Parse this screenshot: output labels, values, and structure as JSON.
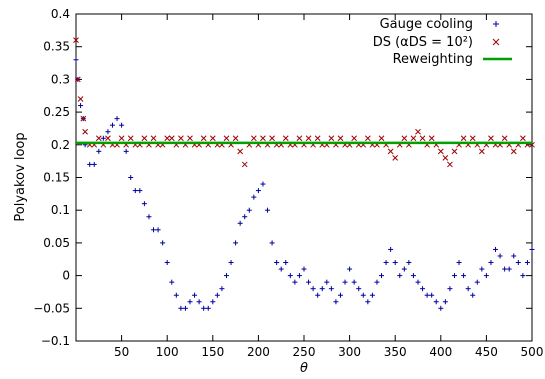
{
  "chart_data": {
    "type": "scatter",
    "xlabel": "θ",
    "ylabel": "Polyakov loop",
    "xlim": [
      0,
      500
    ],
    "ylim": [
      -0.1,
      0.4
    ],
    "x_ticks": [
      50,
      100,
      150,
      200,
      250,
      300,
      350,
      400,
      450,
      500
    ],
    "y_ticks": [
      -0.1,
      -0.05,
      0,
      0.05,
      0.1,
      0.15,
      0.2,
      0.25,
      0.3,
      0.35,
      0.4
    ],
    "legend_position": "top-right",
    "series": [
      {
        "name": "Gauge cooling",
        "marker": "plus",
        "color": "#0000a0",
        "x": [
          0,
          2,
          5,
          8,
          10,
          15,
          20,
          25,
          30,
          35,
          40,
          45,
          50,
          55,
          60,
          65,
          70,
          75,
          80,
          85,
          90,
          95,
          100,
          105,
          110,
          115,
          120,
          125,
          130,
          135,
          140,
          145,
          150,
          155,
          160,
          165,
          170,
          175,
          180,
          185,
          190,
          195,
          200,
          205,
          210,
          215,
          220,
          225,
          230,
          235,
          240,
          245,
          250,
          255,
          260,
          265,
          270,
          275,
          280,
          285,
          290,
          295,
          300,
          305,
          310,
          315,
          320,
          325,
          330,
          335,
          340,
          345,
          350,
          355,
          360,
          365,
          370,
          375,
          380,
          385,
          390,
          395,
          400,
          405,
          410,
          415,
          420,
          425,
          430,
          435,
          440,
          445,
          450,
          455,
          460,
          465,
          470,
          475,
          480,
          485,
          490,
          495,
          500
        ],
        "y": [
          0.33,
          0.3,
          0.26,
          0.24,
          0.2,
          0.17,
          0.17,
          0.19,
          0.21,
          0.22,
          0.23,
          0.24,
          0.23,
          0.19,
          0.15,
          0.13,
          0.13,
          0.11,
          0.09,
          0.07,
          0.07,
          0.05,
          0.02,
          -0.01,
          -0.03,
          -0.05,
          -0.05,
          -0.04,
          -0.03,
          -0.04,
          -0.05,
          -0.05,
          -0.04,
          -0.03,
          -0.02,
          0.0,
          0.02,
          0.05,
          0.08,
          0.09,
          0.1,
          0.12,
          0.13,
          0.14,
          0.1,
          0.05,
          0.02,
          0.01,
          0.02,
          0.0,
          -0.01,
          0.0,
          0.01,
          -0.01,
          -0.02,
          -0.03,
          -0.02,
          -0.01,
          -0.02,
          -0.04,
          -0.03,
          -0.01,
          0.01,
          -0.01,
          -0.02,
          -0.03,
          -0.04,
          -0.03,
          -0.01,
          0.0,
          0.02,
          0.04,
          0.02,
          0.0,
          0.01,
          0.02,
          0.0,
          -0.01,
          -0.02,
          -0.03,
          -0.03,
          -0.04,
          -0.05,
          -0.04,
          -0.02,
          0.0,
          0.02,
          0.0,
          -0.02,
          -0.03,
          -0.01,
          0.01,
          0.0,
          0.02,
          0.04,
          0.03,
          0.01,
          0.01,
          0.03,
          0.02,
          0.0,
          0.02,
          0.04
        ]
      },
      {
        "name": "DS (αDS = 10²)",
        "marker": "cross",
        "color": "#a00000",
        "x": [
          0,
          2,
          5,
          8,
          10,
          15,
          20,
          25,
          30,
          35,
          40,
          45,
          50,
          55,
          60,
          65,
          70,
          75,
          80,
          85,
          90,
          95,
          100,
          105,
          110,
          115,
          120,
          125,
          130,
          135,
          140,
          145,
          150,
          155,
          160,
          165,
          170,
          175,
          180,
          185,
          190,
          195,
          200,
          205,
          210,
          215,
          220,
          225,
          230,
          235,
          240,
          245,
          250,
          255,
          260,
          265,
          270,
          275,
          280,
          285,
          290,
          295,
          300,
          305,
          310,
          315,
          320,
          325,
          330,
          335,
          340,
          345,
          350,
          355,
          360,
          365,
          370,
          375,
          380,
          385,
          390,
          395,
          400,
          405,
          410,
          415,
          420,
          425,
          430,
          435,
          440,
          445,
          450,
          455,
          460,
          465,
          470,
          475,
          480,
          485,
          490,
          495,
          500
        ],
        "y": [
          0.36,
          0.3,
          0.27,
          0.24,
          0.22,
          0.2,
          0.2,
          0.21,
          0.2,
          0.21,
          0.2,
          0.2,
          0.21,
          0.2,
          0.21,
          0.2,
          0.2,
          0.21,
          0.2,
          0.21,
          0.2,
          0.2,
          0.21,
          0.21,
          0.2,
          0.21,
          0.2,
          0.21,
          0.2,
          0.2,
          0.21,
          0.2,
          0.21,
          0.2,
          0.2,
          0.21,
          0.2,
          0.21,
          0.19,
          0.17,
          0.2,
          0.21,
          0.2,
          0.21,
          0.2,
          0.21,
          0.2,
          0.2,
          0.21,
          0.2,
          0.2,
          0.21,
          0.2,
          0.21,
          0.2,
          0.21,
          0.2,
          0.2,
          0.21,
          0.2,
          0.21,
          0.2,
          0.2,
          0.21,
          0.2,
          0.2,
          0.21,
          0.2,
          0.2,
          0.21,
          0.2,
          0.19,
          0.18,
          0.2,
          0.21,
          0.2,
          0.21,
          0.22,
          0.21,
          0.2,
          0.21,
          0.2,
          0.19,
          0.18,
          0.17,
          0.19,
          0.2,
          0.21,
          0.2,
          0.21,
          0.2,
          0.19,
          0.2,
          0.21,
          0.2,
          0.2,
          0.21,
          0.2,
          0.19,
          0.2,
          0.21,
          0.2,
          0.2
        ]
      },
      {
        "name": "Reweighting",
        "marker": "line",
        "color": "#00a000",
        "x": [
          0,
          500
        ],
        "y": [
          0.203,
          0.203
        ]
      }
    ]
  }
}
